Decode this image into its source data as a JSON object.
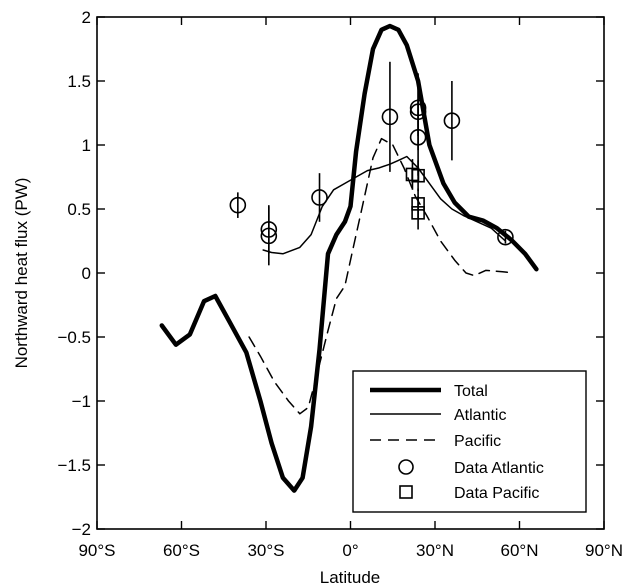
{
  "chart_data": {
    "type": "line",
    "title": "",
    "xlabel": "Latitude",
    "ylabel": "Northward heat flux (PW)",
    "xlim": [
      -90,
      90
    ],
    "ylim": [
      -2,
      2
    ],
    "x_ticks": [
      -90,
      -60,
      -30,
      0,
      30,
      60,
      90
    ],
    "x_tick_labels": [
      "90°S",
      "60°S",
      "30°S",
      "0°",
      "30°N",
      "60°N",
      "90°N"
    ],
    "y_ticks": [
      -2,
      -1.5,
      -1,
      -0.5,
      0,
      0.5,
      1,
      1.5,
      2
    ],
    "y_tick_labels": [
      "−2",
      "−1.5",
      "−1",
      "−0.5",
      "0",
      "0.5",
      "1",
      "1.5",
      "2"
    ],
    "grid": false,
    "legend_position": "bottom-right",
    "series": [
      {
        "name": "Total",
        "style": "thick-solid",
        "points": [
          [
            -67,
            -0.41
          ],
          [
            -62,
            -0.56
          ],
          [
            -57,
            -0.48
          ],
          [
            -52,
            -0.22
          ],
          [
            -48,
            -0.18
          ],
          [
            -43,
            -0.38
          ],
          [
            -37,
            -0.62
          ],
          [
            -32,
            -1.0
          ],
          [
            -28,
            -1.33
          ],
          [
            -24,
            -1.6
          ],
          [
            -20,
            -1.7
          ],
          [
            -17,
            -1.6
          ],
          [
            -14,
            -1.2
          ],
          [
            -11,
            -0.6
          ],
          [
            -8,
            0.15
          ],
          [
            -5,
            0.3
          ],
          [
            -2,
            0.4
          ],
          [
            0,
            0.52
          ],
          [
            2,
            0.95
          ],
          [
            5,
            1.4
          ],
          [
            8,
            1.75
          ],
          [
            11,
            1.9
          ],
          [
            14,
            1.93
          ],
          [
            17,
            1.9
          ],
          [
            20,
            1.78
          ],
          [
            24,
            1.5
          ],
          [
            28,
            1.0
          ],
          [
            33,
            0.7
          ],
          [
            37,
            0.55
          ],
          [
            42,
            0.44
          ],
          [
            47,
            0.41
          ],
          [
            52,
            0.35
          ],
          [
            57,
            0.26
          ],
          [
            62,
            0.15
          ],
          [
            66,
            0.03
          ]
        ]
      },
      {
        "name": "Atlantic",
        "style": "thin-solid",
        "points": [
          [
            -31,
            0.18
          ],
          [
            -28,
            0.16
          ],
          [
            -24,
            0.15
          ],
          [
            -18,
            0.2
          ],
          [
            -14,
            0.3
          ],
          [
            -10,
            0.52
          ],
          [
            -6,
            0.65
          ],
          [
            -2,
            0.7
          ],
          [
            2,
            0.75
          ],
          [
            6,
            0.8
          ],
          [
            10,
            0.82
          ],
          [
            14,
            0.85
          ],
          [
            17,
            0.88
          ],
          [
            20,
            0.91
          ],
          [
            24,
            0.82
          ],
          [
            28,
            0.7
          ],
          [
            32,
            0.58
          ],
          [
            36,
            0.5
          ],
          [
            40,
            0.45
          ],
          [
            45,
            0.4
          ],
          [
            50,
            0.35
          ],
          [
            55,
            0.25
          ]
        ]
      },
      {
        "name": "Pacific",
        "style": "dashed",
        "points": [
          [
            -36,
            -0.5
          ],
          [
            -32,
            -0.65
          ],
          [
            -27,
            -0.85
          ],
          [
            -22,
            -1.0
          ],
          [
            -18,
            -1.1
          ],
          [
            -15,
            -1.05
          ],
          [
            -12,
            -0.8
          ],
          [
            -8,
            -0.45
          ],
          [
            -5,
            -0.2
          ],
          [
            -2,
            -0.1
          ],
          [
            1,
            0.2
          ],
          [
            4,
            0.5
          ],
          [
            8,
            0.9
          ],
          [
            11,
            1.05
          ],
          [
            15,
            1.0
          ],
          [
            19,
            0.82
          ],
          [
            23,
            0.6
          ],
          [
            27,
            0.45
          ],
          [
            32,
            0.25
          ],
          [
            37,
            0.1
          ],
          [
            41,
            0.0
          ],
          [
            44,
            -0.02
          ],
          [
            48,
            0.02
          ],
          [
            54,
            0.01
          ],
          [
            58,
            0.0
          ]
        ]
      }
    ],
    "data_points": [
      {
        "name": "Data Atlantic",
        "marker": "circle",
        "points": [
          {
            "x": -40,
            "y": 0.53,
            "err": 0.1
          },
          {
            "x": -29,
            "y": 0.34,
            "err": 0.19
          },
          {
            "x": -29,
            "y": 0.29,
            "err": 0.23
          },
          {
            "x": -11,
            "y": 0.59,
            "err": 0.19
          },
          {
            "x": 14,
            "y": 1.22,
            "err": 0.43
          },
          {
            "x": 24,
            "y": 1.26,
            "err": 0.3
          },
          {
            "x": 24,
            "y": 1.29,
            "err": 0.22
          },
          {
            "x": 24,
            "y": 1.06,
            "err": 0.3
          },
          {
            "x": 36,
            "y": 1.19,
            "err": 0.31
          },
          {
            "x": 55,
            "y": 0.28,
            "err": 0.05
          }
        ]
      },
      {
        "name": "Data Pacific",
        "marker": "square",
        "points": [
          {
            "x": 22,
            "y": 0.77,
            "err": 0.12
          },
          {
            "x": 24,
            "y": 0.76,
            "err": 0.12
          },
          {
            "x": 24,
            "y": 0.54,
            "err": 0.12
          },
          {
            "x": 24,
            "y": 0.47,
            "err": 0.13
          }
        ]
      }
    ],
    "legend": {
      "entries": [
        "Total",
        "Atlantic",
        "Pacific",
        "Data Atlantic",
        "Data Pacific"
      ]
    }
  }
}
